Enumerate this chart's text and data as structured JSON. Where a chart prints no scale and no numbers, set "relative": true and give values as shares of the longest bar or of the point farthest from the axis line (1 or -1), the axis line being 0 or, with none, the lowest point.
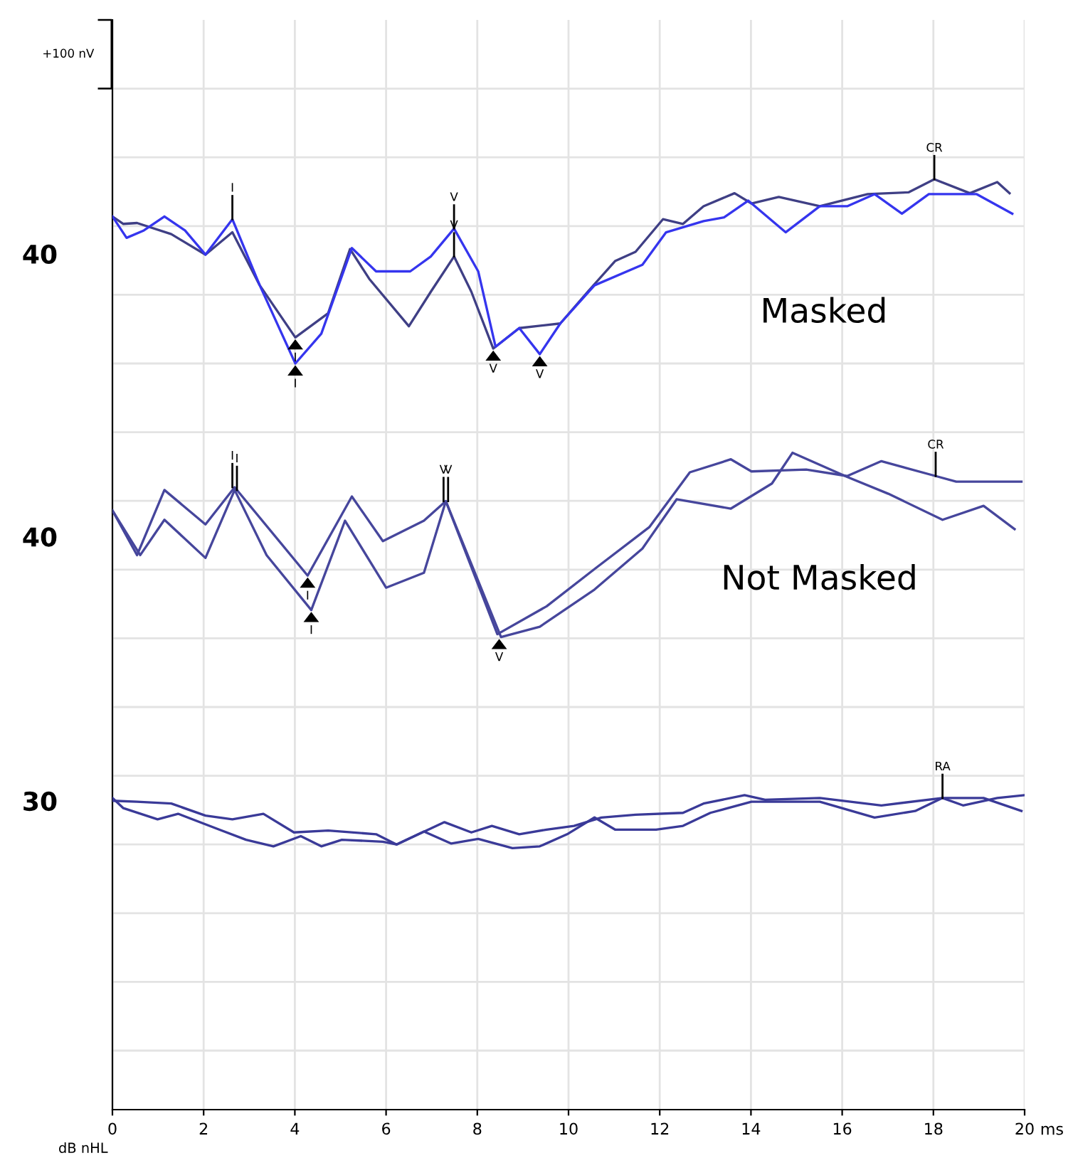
{
  "chart_data": {
    "type": "line",
    "relative": true,
    "xlabel": "ms",
    "ylabel": "dB nHL",
    "xlim": [
      0,
      20
    ],
    "xticks": [
      0,
      2,
      4,
      6,
      8,
      10,
      12,
      14,
      16,
      18,
      20
    ],
    "grid": true,
    "tick_labels": "x",
    "marker": "none",
    "line_style": "solid",
    "series": [
      {
        "color": "#3f3f85",
        "x": [
          0,
          0.24,
          0.54,
          1.29,
          2.04,
          2.63,
          3.23,
          4.01,
          4.73,
          5.21,
          5.63,
          6.5,
          6.98,
          7.49,
          7.87,
          8.35,
          8.92,
          9.82,
          10.42,
          11.02,
          11.47,
          12.07,
          12.51,
          12.96,
          13.64,
          14.01,
          14.61,
          15.51,
          16.56,
          17.46,
          18.02,
          18.8,
          19.4,
          19.67
        ],
        "values": [
          0.96,
          0.952,
          0.953,
          0.941,
          0.919,
          0.943,
          0.886,
          0.83,
          0.856,
          0.925,
          0.893,
          0.842,
          0.879,
          0.917,
          0.879,
          0.818,
          0.84,
          0.845,
          0.879,
          0.912,
          0.922,
          0.957,
          0.952,
          0.971,
          0.985,
          0.974,
          0.981,
          0.971,
          0.984,
          0.986,
          1.0,
          0.985,
          0.997,
          0.985
        ]
      },
      {
        "color": "#3535ee",
        "x": [
          0,
          0.31,
          0.69,
          1.14,
          1.59,
          2.04,
          2.63,
          3.23,
          4.01,
          4.58,
          5.25,
          5.78,
          6.53,
          6.98,
          7.49,
          8.02,
          8.4,
          8.92,
          9.37,
          9.82,
          10.57,
          11.62,
          12.14,
          12.96,
          13.41,
          13.94,
          14.76,
          15.51,
          16.11,
          16.71,
          17.31,
          17.9,
          18.95,
          19.73
        ],
        "values": [
          0.96,
          0.937,
          0.945,
          0.96,
          0.945,
          0.919,
          0.957,
          0.886,
          0.802,
          0.834,
          0.926,
          0.901,
          0.901,
          0.917,
          0.947,
          0.901,
          0.82,
          0.84,
          0.812,
          0.845,
          0.886,
          0.908,
          0.943,
          0.955,
          0.959,
          0.977,
          0.943,
          0.971,
          0.971,
          0.984,
          0.963,
          0.984,
          0.984,
          0.963
        ]
      },
      {
        "color": "#46469c",
        "x": [
          0,
          0.54,
          1.14,
          2.04,
          2.68,
          4.28,
          5.25,
          5.93,
          6.83,
          7.31,
          8.44,
          9.52,
          10.57,
          11.77,
          12.66,
          13.56,
          14.01,
          15.21,
          16.11,
          16.86,
          18.05,
          18.5,
          19.93
        ],
        "values": [
          0.644,
          0.596,
          0.666,
          0.629,
          0.669,
          0.574,
          0.659,
          0.611,
          0.633,
          0.654,
          0.511,
          0.541,
          0.581,
          0.626,
          0.685,
          0.699,
          0.686,
          0.688,
          0.681,
          0.697,
          0.681,
          0.675,
          0.675
        ]
      },
      {
        "color": "#46469c",
        "x": [
          0,
          0.61,
          1.14,
          2.04,
          2.68,
          3.38,
          4.36,
          5.1,
          6.0,
          6.83,
          7.31,
          8.52,
          9.37,
          10.57,
          11.62,
          12.37,
          13.56,
          14.46,
          14.91,
          16.11,
          17.01,
          18.2,
          19.1,
          19.78
        ],
        "values": [
          0.644,
          0.596,
          0.634,
          0.593,
          0.666,
          0.596,
          0.537,
          0.633,
          0.561,
          0.577,
          0.654,
          0.508,
          0.519,
          0.559,
          0.603,
          0.656,
          0.646,
          0.673,
          0.706,
          0.68,
          0.662,
          0.634,
          0.649,
          0.624
        ]
      },
      {
        "color": "#3a3a98",
        "x": [
          0,
          0.24,
          0.99,
          1.44,
          2.34,
          2.93,
          3.53,
          4.13,
          4.58,
          5.03,
          5.93,
          6.23,
          6.83,
          7.43,
          8.02,
          8.77,
          9.37,
          9.97,
          10.57,
          11.02,
          11.92,
          12.51,
          13.11,
          14.01,
          15.51,
          16.71,
          17.6,
          18.2,
          18.65,
          19.4,
          20.0
        ],
        "values": [
          0.335,
          0.324,
          0.312,
          0.318,
          0.301,
          0.29,
          0.283,
          0.294,
          0.283,
          0.29,
          0.288,
          0.285,
          0.299,
          0.286,
          0.291,
          0.281,
          0.283,
          0.296,
          0.314,
          0.301,
          0.301,
          0.305,
          0.319,
          0.331,
          0.331,
          0.314,
          0.321,
          0.335,
          0.327,
          0.335,
          0.338
        ]
      },
      {
        "color": "#3a3a98",
        "x": [
          0,
          0.54,
          1.29,
          2.04,
          2.63,
          3.31,
          3.98,
          4.73,
          5.78,
          6.23,
          7.28,
          7.87,
          8.32,
          8.92,
          9.52,
          10.12,
          10.72,
          11.47,
          12.51,
          12.96,
          13.86,
          14.31,
          15.51,
          16.86,
          18.2,
          19.1,
          19.93
        ],
        "values": [
          0.332,
          0.331,
          0.329,
          0.316,
          0.312,
          0.318,
          0.298,
          0.3,
          0.296,
          0.285,
          0.309,
          0.298,
          0.305,
          0.296,
          0.301,
          0.305,
          0.314,
          0.317,
          0.319,
          0.329,
          0.338,
          0.333,
          0.335,
          0.327,
          0.335,
          0.335,
          0.321
        ]
      }
    ],
    "annotations": [
      "+100 nV",
      "40",
      "40",
      "30",
      "Masked",
      "Not Masked",
      {
        "text": "I",
        "x": 2.63,
        "y": 0.957
      },
      {
        "text": "V",
        "x": 7.49,
        "y": 0.947
      },
      {
        "text": "V",
        "x": 7.49,
        "y": 0.917
      },
      {
        "text": "I",
        "x": 4.01,
        "y": 0.83
      },
      {
        "text": "I",
        "x": 4.01,
        "y": 0.802
      },
      {
        "text": "V",
        "x": 8.35,
        "y": 0.818
      },
      {
        "text": "V",
        "x": 9.37,
        "y": 0.812
      },
      {
        "text": "CR",
        "x": 18.02,
        "y": 1.0
      },
      {
        "text": "I",
        "x": 2.63,
        "y": 0.669
      },
      {
        "text": "I",
        "x": 2.73,
        "y": 0.666
      },
      {
        "text": "V",
        "x": 7.26,
        "y": 0.654
      },
      {
        "text": "V",
        "x": 7.36,
        "y": 0.654
      },
      {
        "text": "I",
        "x": 4.28,
        "y": 0.574
      },
      {
        "text": "I",
        "x": 4.36,
        "y": 0.537
      },
      {
        "text": "V",
        "x": 8.48,
        "y": 0.508
      },
      {
        "text": "CR",
        "x": 18.05,
        "y": 0.681
      },
      {
        "text": "RA",
        "x": 18.2,
        "y": 0.335
      }
    ]
  }
}
